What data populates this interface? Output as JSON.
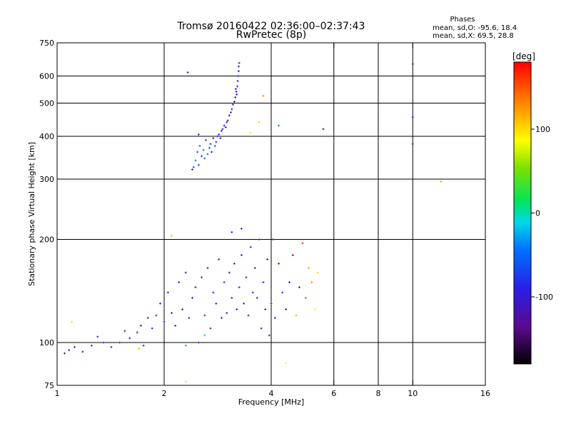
{
  "chart_data": {
    "type": "scatter",
    "title": "Tromsø 20160422 02:36:00–02:37:43",
    "subtitle": "RwPretec (8p)",
    "stats": {
      "header": "Phases",
      "line1": "mean, sd,O: -95.6, 18.4",
      "line2": "mean, sd,X:  69.5, 28.8"
    },
    "xlabel": "Frequency [MHz]",
    "ylabel": "Stationary phase Virtual Height [km]",
    "x_scale": "log",
    "y_scale": "log",
    "xlim": [
      1,
      16
    ],
    "ylim": [
      75,
      750
    ],
    "grid": true,
    "x_ticks": [
      1,
      2,
      4,
      6,
      8,
      10,
      16
    ],
    "x_tick_labels": [
      "1",
      "2",
      "4",
      "6",
      "8",
      "10",
      "16"
    ],
    "x_grid": [
      2,
      4,
      6,
      8,
      10
    ],
    "y_ticks": [
      75,
      100,
      200,
      300,
      400,
      500,
      600,
      750
    ],
    "y_tick_labels": [
      "75",
      "100",
      "200",
      "300",
      "400",
      "500",
      "600",
      "750"
    ],
    "y_grid": [
      100,
      200,
      300,
      400,
      500,
      600
    ],
    "colorbar": {
      "label": "[deg]",
      "range": [
        -180,
        180
      ],
      "ticks": [
        100,
        0,
        -100
      ],
      "tick_labels": [
        "100",
        "0",
        "-100"
      ]
    },
    "series": [
      {
        "points": [
          [
            1.05,
            93,
            -110
          ],
          [
            1.08,
            95,
            -105
          ],
          [
            1.12,
            97,
            -108
          ],
          [
            1.18,
            94,
            -100
          ],
          [
            1.25,
            98,
            -115
          ],
          [
            1.3,
            104,
            -102
          ],
          [
            1.35,
            100,
            -110
          ],
          [
            1.42,
            97,
            -95
          ],
          [
            1.5,
            100,
            -100
          ],
          [
            1.55,
            108,
            -90
          ],
          [
            1.6,
            103,
            -105
          ],
          [
            1.68,
            107,
            -100
          ],
          [
            1.72,
            112,
            -95
          ],
          [
            1.75,
            98,
            -110
          ],
          [
            1.8,
            118,
            -100
          ],
          [
            1.85,
            110,
            -92
          ],
          [
            1.9,
            120,
            -100
          ],
          [
            1.95,
            130,
            -105
          ],
          [
            2.0,
            115,
            -98
          ],
          [
            2.05,
            140,
            -100
          ],
          [
            2.1,
            122,
            -110
          ],
          [
            2.15,
            112,
            -95
          ],
          [
            2.2,
            150,
            -100
          ],
          [
            2.25,
            125,
            -90
          ],
          [
            2.3,
            160,
            -108
          ],
          [
            2.35,
            118,
            -100
          ],
          [
            2.4,
            135,
            -95
          ],
          [
            2.45,
            145,
            -102
          ],
          [
            2.5,
            100,
            -98
          ],
          [
            2.55,
            155,
            -100
          ],
          [
            2.6,
            120,
            -80
          ],
          [
            2.65,
            165,
            -100
          ],
          [
            2.7,
            110,
            -95
          ],
          [
            2.75,
            140,
            -88
          ],
          [
            2.8,
            130,
            -110
          ],
          [
            2.85,
            175,
            -100
          ],
          [
            2.9,
            118,
            -102
          ],
          [
            2.95,
            150,
            -70
          ],
          [
            3.0,
            122,
            -100
          ],
          [
            3.05,
            160,
            -105
          ],
          [
            3.1,
            135,
            -95
          ],
          [
            3.15,
            170,
            -100
          ],
          [
            3.2,
            125,
            -110
          ],
          [
            3.25,
            145,
            -92
          ],
          [
            3.3,
            180,
            -100
          ],
          [
            3.35,
            130,
            -98
          ],
          [
            3.4,
            155,
            -100
          ],
          [
            3.45,
            120,
            -85
          ],
          [
            3.5,
            190,
            -110
          ],
          [
            3.55,
            140,
            -100
          ],
          [
            3.6,
            165,
            -95
          ],
          [
            3.65,
            135,
            -100
          ],
          [
            3.7,
            200,
            -100
          ],
          [
            3.75,
            110,
            -105
          ],
          [
            3.8,
            150,
            -98
          ],
          [
            3.85,
            125,
            -100
          ],
          [
            3.9,
            175,
            -100
          ],
          [
            3.95,
            105,
            -110
          ],
          [
            4.0,
            130,
            -95
          ],
          [
            4.05,
            200,
            -100
          ],
          [
            4.1,
            118,
            -100
          ],
          [
            4.2,
            170,
            -90
          ],
          [
            4.3,
            140,
            -100
          ],
          [
            4.4,
            125,
            -100
          ],
          [
            4.5,
            150,
            -95
          ],
          [
            4.6,
            180,
            -100
          ],
          [
            4.7,
            120,
            60
          ],
          [
            4.8,
            145,
            -110
          ],
          [
            4.9,
            195,
            165
          ],
          [
            5.0,
            135,
            150
          ],
          [
            5.1,
            165,
            120
          ],
          [
            5.2,
            150,
            130
          ],
          [
            5.3,
            125,
            90
          ],
          [
            5.4,
            160,
            100
          ],
          [
            1.1,
            115,
            100
          ],
          [
            2.1,
            205,
            110
          ],
          [
            2.6,
            105,
            10
          ],
          [
            2.3,
            77,
            80
          ],
          [
            4.4,
            87,
            85
          ],
          [
            2.3,
            98,
            -30
          ],
          [
            3.1,
            210,
            -100
          ],
          [
            1.7,
            96,
            60
          ],
          [
            3.3,
            215,
            -100
          ],
          [
            2.42,
            325,
            -60
          ],
          [
            2.45,
            340,
            -40
          ],
          [
            2.48,
            360,
            -50
          ],
          [
            2.5,
            330,
            -70
          ],
          [
            2.52,
            375,
            -55
          ],
          [
            2.55,
            350,
            -80
          ],
          [
            2.58,
            365,
            -45
          ],
          [
            2.6,
            345,
            -60
          ],
          [
            2.62,
            390,
            -75
          ],
          [
            2.65,
            355,
            -50
          ],
          [
            2.68,
            370,
            -65
          ],
          [
            2.7,
            380,
            -70
          ],
          [
            2.72,
            360,
            -90
          ],
          [
            2.75,
            395,
            -85
          ],
          [
            2.78,
            375,
            -60
          ],
          [
            2.8,
            385,
            -100
          ],
          [
            2.82,
            400,
            -95
          ],
          [
            2.85,
            405,
            -100
          ],
          [
            2.88,
            395,
            -110
          ],
          [
            2.9,
            415,
            -100
          ],
          [
            2.92,
            420,
            -105
          ],
          [
            2.95,
            430,
            -100
          ],
          [
            2.98,
            425,
            -110
          ],
          [
            3.0,
            440,
            -100
          ],
          [
            3.02,
            445,
            -115
          ],
          [
            3.05,
            460,
            -100
          ],
          [
            3.08,
            470,
            -105
          ],
          [
            3.1,
            480,
            -110
          ],
          [
            3.12,
            495,
            -100
          ],
          [
            3.15,
            505,
            -115
          ],
          [
            3.17,
            520,
            -110
          ],
          [
            3.19,
            540,
            -105
          ],
          [
            3.21,
            560,
            -110
          ],
          [
            3.22,
            580,
            -115
          ],
          [
            3.23,
            600,
            -100
          ],
          [
            3.24,
            620,
            -110
          ],
          [
            3.24,
            640,
            -105
          ],
          [
            3.25,
            655,
            -108
          ],
          [
            3.2,
            530,
            -100
          ],
          [
            3.18,
            550,
            -110
          ],
          [
            2.5,
            405,
            -100
          ],
          [
            2.4,
            320,
            -95
          ],
          [
            2.33,
            615,
            -105
          ],
          [
            3.5,
            410,
            100
          ],
          [
            3.7,
            440,
            110
          ],
          [
            3.8,
            525,
            130
          ],
          [
            4.2,
            430,
            -40
          ],
          [
            5.6,
            420,
            -100
          ],
          [
            10.0,
            650,
            -110
          ],
          [
            10.0,
            455,
            -100
          ],
          [
            10.0,
            380,
            -105
          ],
          [
            12.0,
            295,
            120
          ]
        ]
      }
    ]
  }
}
